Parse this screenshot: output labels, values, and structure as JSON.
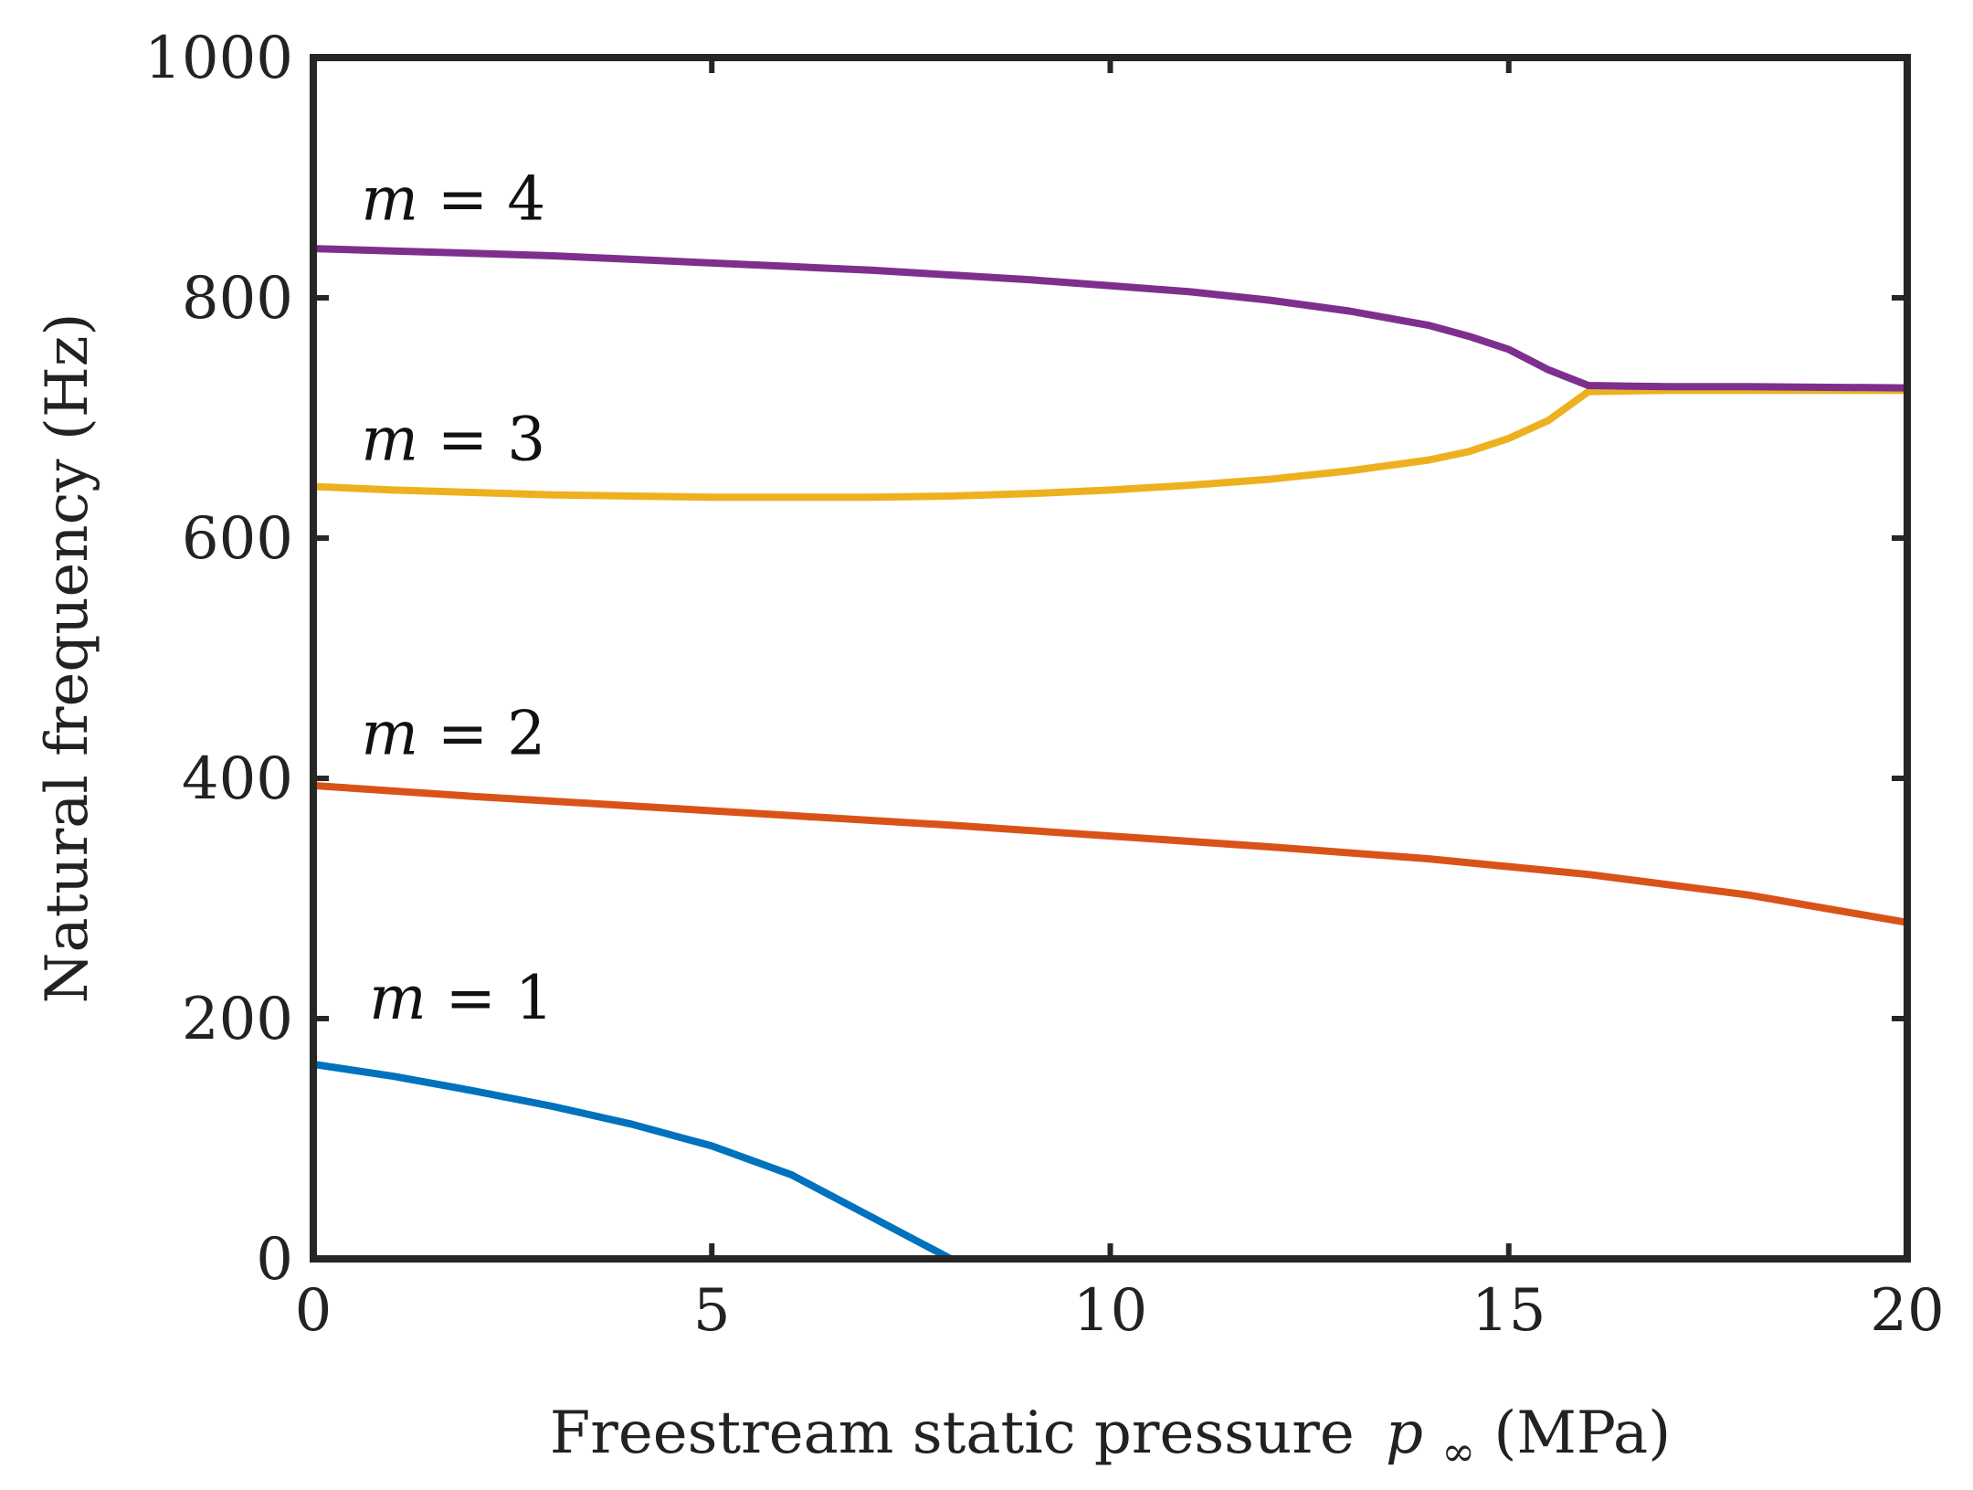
{
  "chart_data": {
    "type": "line",
    "title": "",
    "xlabel": "Freestream static pressure",
    "xlabel_symbol": "p",
    "xlabel_subscript": "∞",
    "xlabel_unit": "(MPa)",
    "ylabel": "Natural frequency (Hz)",
    "xlim": [
      0,
      20
    ],
    "ylim": [
      0,
      1000
    ],
    "xticks": [
      0,
      5,
      10,
      15,
      20
    ],
    "yticks": [
      0,
      200,
      400,
      600,
      800,
      1000
    ],
    "xtick_labels": [
      "0",
      "5",
      "10",
      "15",
      "20"
    ],
    "ytick_labels": [
      "0",
      "200",
      "400",
      "600",
      "800",
      "1000"
    ],
    "grid": false,
    "series": [
      {
        "name": "m = 1",
        "var": "m",
        "eq": " = ",
        "num": "1",
        "color": "#0072BD",
        "label_at": [
          0.7,
          200
        ],
        "x": [
          0,
          1,
          2,
          3,
          4,
          5,
          6,
          7,
          8
        ],
        "y": [
          162,
          152,
          140,
          127,
          112,
          94,
          70,
          35,
          0
        ]
      },
      {
        "name": "m = 2",
        "var": "m",
        "eq": " = ",
        "num": "2",
        "color": "#D95319",
        "label_at": [
          0.6,
          420
        ],
        "x": [
          0,
          2,
          4,
          6,
          8,
          10,
          12,
          14,
          16,
          18,
          20
        ],
        "y": [
          394,
          385,
          377,
          369,
          361,
          352,
          343,
          333,
          320,
          303,
          280
        ]
      },
      {
        "name": "m = 3",
        "var": "m",
        "eq": " = ",
        "num": "3",
        "color": "#EDB120",
        "label_at": [
          0.6,
          665
        ],
        "x": [
          0,
          1,
          2,
          3,
          4,
          5,
          6,
          7,
          8,
          9,
          10,
          11,
          12,
          13,
          14,
          14.5,
          15,
          15.5,
          16,
          17,
          18,
          20
        ],
        "y": [
          643,
          640,
          638,
          636,
          635,
          634,
          634,
          634,
          635,
          637,
          640,
          644,
          649,
          656,
          665,
          672,
          683,
          698,
          722,
          723,
          723,
          723
        ]
      },
      {
        "name": "m = 4",
        "var": "m",
        "eq": " = ",
        "num": "4",
        "color": "#7E2F8E",
        "label_at": [
          0.6,
          865
        ],
        "x": [
          0,
          1,
          2,
          3,
          4,
          5,
          6,
          7,
          8,
          9,
          10,
          11,
          12,
          13,
          14,
          14.5,
          15,
          15.5,
          16,
          17,
          18,
          20
        ],
        "y": [
          841,
          839,
          837,
          835,
          832,
          829,
          826,
          823,
          819,
          815,
          810,
          805,
          798,
          789,
          777,
          768,
          757,
          740,
          727,
          726,
          726,
          725
        ]
      }
    ]
  }
}
